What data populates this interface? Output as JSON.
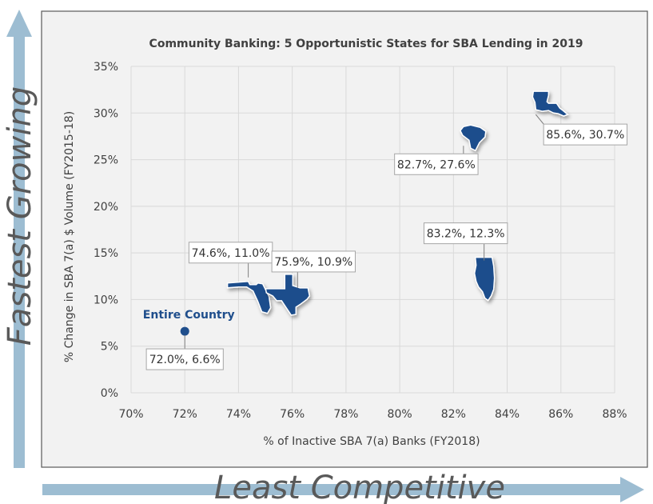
{
  "side_labels": {
    "vertical": "Fastest Growing",
    "horizontal": "Least Competitive"
  },
  "colors": {
    "arrow": "#9dbdd2",
    "frame_border": "#595959",
    "plot_bg": "#f2f2f2",
    "grid": "#d9d9d9",
    "marker": "#1f4e8c",
    "text": "#404040"
  },
  "chart_data": {
    "type": "scatter",
    "title": "Community Banking: 5 Opportunistic States for SBA Lending in 2019",
    "xlabel": "% of Inactive SBA 7(a) Banks (FY2018)",
    "ylabel": "% Change in SBA 7(a) $ Volume (FY2015-18)",
    "xlim": [
      70,
      88
    ],
    "ylim": [
      0,
      35
    ],
    "x_ticks": [
      "70%",
      "72%",
      "74%",
      "76%",
      "78%",
      "80%",
      "82%",
      "84%",
      "86%",
      "88%"
    ],
    "y_ticks": [
      "0%",
      "5%",
      "10%",
      "15%",
      "20%",
      "25%",
      "30%",
      "35%"
    ],
    "grid": true,
    "series": [
      {
        "points": [
          {
            "x": 72.0,
            "y": 6.6,
            "label": "72.0%, 6.6%",
            "marker": "circle",
            "name": "Entire Country"
          },
          {
            "x": 74.6,
            "y": 11.0,
            "label": "74.6%, 11.0%",
            "marker": "state-shape"
          },
          {
            "x": 75.9,
            "y": 10.9,
            "label": "75.9%, 10.9%",
            "marker": "state-shape"
          },
          {
            "x": 82.7,
            "y": 27.6,
            "label": "82.7%, 27.6%",
            "marker": "state-shape"
          },
          {
            "x": 83.2,
            "y": 12.3,
            "label": "83.2%, 12.3%",
            "marker": "state-shape"
          },
          {
            "x": 85.6,
            "y": 30.7,
            "label": "85.6%, 30.7%",
            "marker": "state-shape"
          }
        ]
      }
    ]
  }
}
